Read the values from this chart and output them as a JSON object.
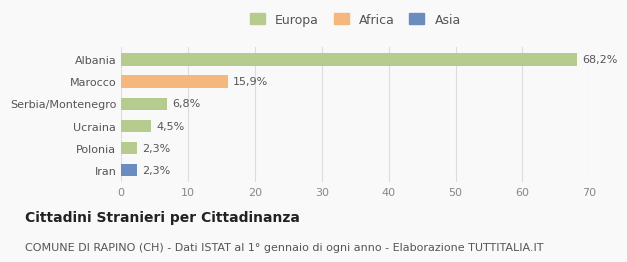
{
  "categories": [
    "Albania",
    "Marocco",
    "Serbia/Montenegro",
    "Ucraina",
    "Polonia",
    "Iran"
  ],
  "values": [
    68.2,
    15.9,
    6.8,
    4.5,
    2.3,
    2.3
  ],
  "labels": [
    "68,2%",
    "15,9%",
    "6,8%",
    "4,5%",
    "2,3%",
    "2,3%"
  ],
  "bar_colors": [
    "#b5cc8e",
    "#f4b77e",
    "#b5cc8e",
    "#b5cc8e",
    "#b5cc8e",
    "#6b8cbf"
  ],
  "legend_items": [
    {
      "label": "Europa",
      "color": "#b5cc8e"
    },
    {
      "label": "Africa",
      "color": "#f4b77e"
    },
    {
      "label": "Asia",
      "color": "#6b8cbf"
    }
  ],
  "xlim": [
    0,
    70
  ],
  "xticks": [
    0,
    10,
    20,
    30,
    40,
    50,
    60,
    70
  ],
  "title_bold": "Cittadini Stranieri per Cittadinanza",
  "subtitle": "COMUNE DI RAPINO (CH) - Dati ISTAT al 1° gennaio di ogni anno - Elaborazione TUTTITALIA.IT",
  "background_color": "#f9f9f9",
  "grid_color": "#dddddd",
  "title_fontsize": 10,
  "subtitle_fontsize": 8,
  "label_fontsize": 8,
  "tick_fontsize": 8,
  "legend_fontsize": 9
}
